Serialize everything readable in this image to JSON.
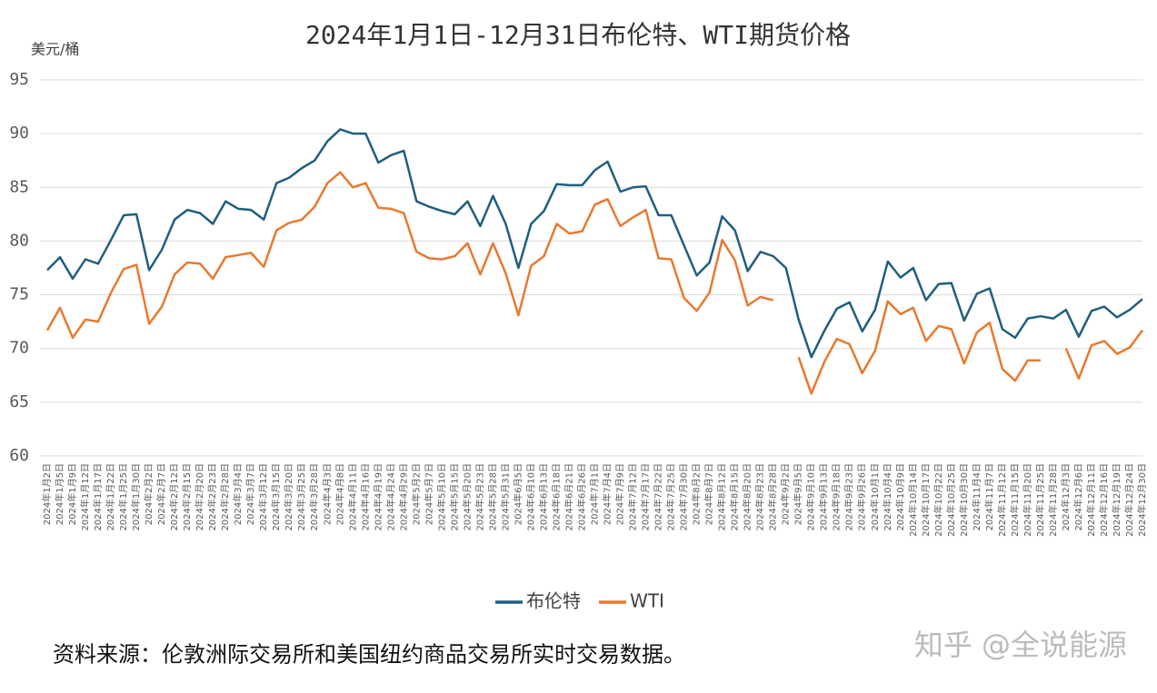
{
  "chart_data": {
    "type": "line",
    "title": "2024年1月1日-12月31日布伦特、WTI期货价格",
    "y_label": "美元/桶",
    "categories": [
      "2024年1月2日",
      "2024年1月5日",
      "2024年1月9日",
      "2024年1月12日",
      "2024年1月17日",
      "2024年1月22日",
      "2024年1月25日",
      "2024年1月30日",
      "2024年2月2日",
      "2024年2月7日",
      "2024年2月12日",
      "2024年2月15日",
      "2024年2月20日",
      "2024年2月23日",
      "2024年2月28日",
      "2024年3月4日",
      "2024年3月7日",
      "2024年3月12日",
      "2024年3月15日",
      "2024年3月20日",
      "2024年3月25日",
      "2024年3月28日",
      "2024年4月3日",
      "2024年4月8日",
      "2024年4月11日",
      "2024年4月16日",
      "2024年4月19日",
      "2024年4月24日",
      "2024年4月29日",
      "2024年5月2日",
      "2024年5月7日",
      "2024年5月10日",
      "2024年5月15日",
      "2024年5月20日",
      "2024年5月23日",
      "2024年5月28日",
      "2024年5月31日",
      "2024年6月5日",
      "2024年6月10日",
      "2024年6月13日",
      "2024年6月18日",
      "2024年6月21日",
      "2024年6月26日",
      "2024年7月1日",
      "2024年7月4日",
      "2024年7月9日",
      "2024年7月12日",
      "2024年7月17日",
      "2024年7月22日",
      "2024年7月25日",
      "2024年7月30日",
      "2024年8月2日",
      "2024年8月7日",
      "2024年8月12日",
      "2024年8月15日",
      "2024年8月20日",
      "2024年8月23日",
      "2024年8月28日",
      "2024年9月2日",
      "2024年9月5日",
      "2024年9月10日",
      "2024年9月13日",
      "2024年9月18日",
      "2024年9月23日",
      "2024年9月26日",
      "2024年10月1日",
      "2024年10月4日",
      "2024年10月9日",
      "2024年10月14日",
      "2024年10月17日",
      "2024年10月22日",
      "2024年10月25日",
      "2024年10月30日",
      "2024年11月4日",
      "2024年11月7日",
      "2024年11月12日",
      "2024年11月15日",
      "2024年11月20日",
      "2024年11月25日",
      "2024年11月28日",
      "2024年12月3日",
      "2024年12月6日",
      "2024年12月11日",
      "2024年12月16日",
      "2024年12月19日",
      "2024年12月24日",
      "2024年12月30日"
    ],
    "series": [
      {
        "name": "布伦特",
        "color": "#1f5f7e",
        "values": [
          77.3,
          78.5,
          76.5,
          78.3,
          77.9,
          80.1,
          82.4,
          82.5,
          77.3,
          79.2,
          82.0,
          82.9,
          82.6,
          81.6,
          83.7,
          83.0,
          82.9,
          82.0,
          85.4,
          85.9,
          86.8,
          87.5,
          89.3,
          90.4,
          90.0,
          90.0,
          87.3,
          88.0,
          88.4,
          83.7,
          83.2,
          82.8,
          82.5,
          83.7,
          81.4,
          84.2,
          81.6,
          77.5,
          81.6,
          82.8,
          85.3,
          85.2,
          85.2,
          86.6,
          87.4,
          84.6,
          85.0,
          85.1,
          82.4,
          82.4,
          79.6,
          76.8,
          78.0,
          82.3,
          81.0,
          77.2,
          79.0,
          78.6,
          77.5,
          72.7,
          69.2,
          71.6,
          73.7,
          74.3,
          71.6,
          73.6,
          78.1,
          76.6,
          77.5,
          74.5,
          76.0,
          76.1,
          72.6,
          75.1,
          75.6,
          71.8,
          71.0,
          72.8,
          73.0,
          72.8,
          73.6,
          71.1,
          73.5,
          73.9,
          72.9,
          73.6,
          74.6
        ]
      },
      {
        "name": "WTI",
        "color": "#e8792f",
        "values": [
          71.7,
          73.8,
          71.0,
          72.7,
          72.5,
          75.2,
          77.4,
          77.8,
          72.3,
          73.9,
          76.9,
          78.0,
          77.9,
          76.5,
          78.5,
          78.7,
          78.9,
          77.6,
          81.0,
          81.7,
          82.0,
          83.2,
          85.4,
          86.4,
          85.0,
          85.4,
          83.1,
          83.0,
          82.6,
          79.0,
          78.4,
          78.3,
          78.6,
          79.8,
          76.9,
          79.8,
          77.0,
          73.1,
          77.7,
          78.6,
          81.6,
          80.7,
          80.9,
          83.4,
          83.9,
          81.4,
          82.2,
          82.9,
          78.4,
          78.3,
          74.7,
          73.5,
          75.2,
          80.1,
          78.2,
          74.0,
          74.8,
          74.5,
          null,
          69.2,
          65.8,
          68.7,
          70.9,
          70.4,
          67.7,
          69.8,
          74.4,
          73.2,
          73.8,
          70.7,
          72.1,
          71.8,
          68.6,
          71.5,
          72.4,
          68.1,
          67.0,
          68.9,
          68.9,
          null,
          70.0,
          67.2,
          70.3,
          70.7,
          69.5,
          70.1,
          71.7
        ]
      }
    ],
    "ylim": [
      60,
      95
    ],
    "yticks": [
      60,
      65,
      70,
      75,
      80,
      85,
      90,
      95
    ],
    "grid": true,
    "legend": "bottom",
    "source": "资料来源：伦敦洲际交易所和美国纽约商品交易所实时交易数据。",
    "watermark": "知乎 @全说能源"
  }
}
